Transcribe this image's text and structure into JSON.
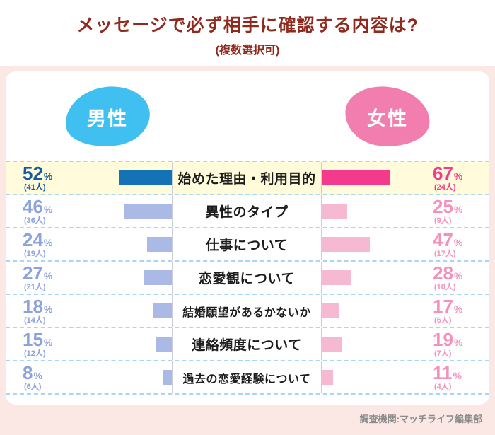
{
  "header": {
    "title": "メッセージで必ず相手に確認する内容は?",
    "subtitle": "(複数選択可)"
  },
  "legend": {
    "male": "男性",
    "female": "女性"
  },
  "footer": {
    "source": "調査機関:マッチライフ編集部"
  },
  "colors": {
    "page_bg": "#fbe7e3",
    "title_color": "#8f2b1e",
    "male_blob": "#3fc0f0",
    "female_blob": "#f27daf",
    "male_accent": "#1373b4",
    "male_accent_text": "#1459a4",
    "male_light": "#aab9e6",
    "male_light_text": "#8ca2de",
    "female_strong": "#f43a8d",
    "female_accent": "#f43a8d",
    "female_light": "#f5bad2",
    "female_light_text": "#f490bb",
    "highlight_bg": "#fffbdb",
    "dash": "#a9d6f2",
    "vline": "#c9ced9"
  },
  "chart_data": {
    "type": "bar",
    "orientation": "bidirectional-horizontal",
    "title": "メッセージで必ず相手に確認する内容は?",
    "subtitle": "(複数選択可)",
    "unit": "%",
    "count_unit": "人",
    "legend": [
      "男性",
      "女性"
    ],
    "legend_position": "top",
    "grid": false,
    "highlight_index": 0,
    "categories": [
      "始めた理由・利用目的",
      "異性のタイプ",
      "仕事について",
      "恋愛観について",
      "結婚願望があるかないか",
      "連絡頻度について",
      "過去の恋愛経験について"
    ],
    "series": [
      {
        "name": "男性",
        "side": "left",
        "values": [
          52,
          46,
          24,
          27,
          18,
          15,
          8
        ],
        "counts": [
          41,
          36,
          19,
          21,
          14,
          12,
          6
        ]
      },
      {
        "name": "女性",
        "side": "right",
        "values": [
          67,
          25,
          47,
          28,
          17,
          19,
          11
        ],
        "counts": [
          24,
          9,
          17,
          10,
          6,
          7,
          4
        ]
      }
    ],
    "value_range": [
      0,
      67
    ],
    "source": "調査機関:マッチライフ編集部"
  }
}
